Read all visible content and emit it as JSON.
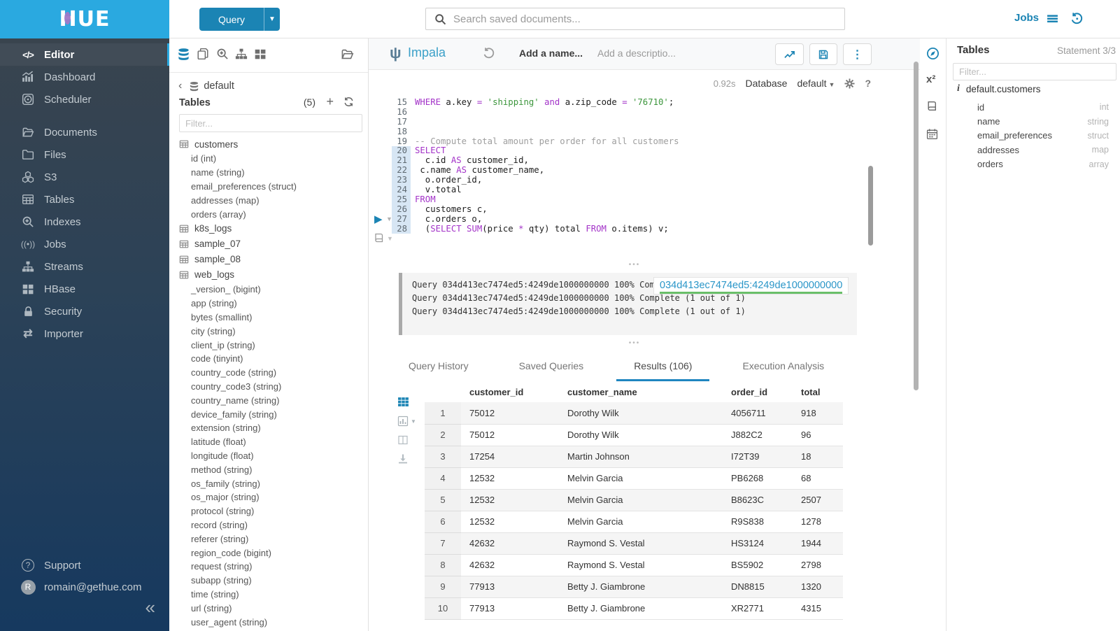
{
  "brand": {
    "logo_text_head": "H",
    "logo_text_tail": "UE"
  },
  "topbar": {
    "query_button": "Query",
    "search_placeholder": "Search saved documents...",
    "jobs_label": "Jobs"
  },
  "sidebar": {
    "items": [
      {
        "label": "Editor",
        "icon": "code-icon",
        "active": true,
        "group_start": false
      },
      {
        "label": "Dashboard",
        "icon": "dashboard-icon",
        "active": false,
        "group_start": false
      },
      {
        "label": "Scheduler",
        "icon": "scheduler-icon",
        "active": false,
        "group_start": false
      },
      {
        "label": "Documents",
        "icon": "documents-icon",
        "active": false,
        "group_start": true
      },
      {
        "label": "Files",
        "icon": "folder-icon",
        "active": false,
        "group_start": false
      },
      {
        "label": "S3",
        "icon": "cubes-icon",
        "active": false,
        "group_start": false
      },
      {
        "label": "Tables",
        "icon": "table-icon",
        "active": false,
        "group_start": false
      },
      {
        "label": "Indexes",
        "icon": "search-plus-icon",
        "active": false,
        "group_start": false
      },
      {
        "label": "Jobs",
        "icon": "broadcast-icon",
        "active": false,
        "group_start": false
      },
      {
        "label": "Streams",
        "icon": "sitemap-icon",
        "active": false,
        "group_start": false
      },
      {
        "label": "HBase",
        "icon": "blocks-icon",
        "active": false,
        "group_start": false
      },
      {
        "label": "Security",
        "icon": "lock-icon",
        "active": false,
        "group_start": false
      },
      {
        "label": "Importer",
        "icon": "exchange-icon",
        "active": false,
        "group_start": false
      }
    ],
    "support_label": "Support",
    "user_email": "romain@gethue.com"
  },
  "left_assist": {
    "database": "default",
    "tables_title": "Tables",
    "tables_count": "(5)",
    "filter_placeholder": "Filter...",
    "tables": [
      {
        "name": "customers",
        "columns": [
          "id (int)",
          "name (string)",
          "email_preferences (struct)",
          "addresses (map)",
          "orders (array)"
        ]
      },
      {
        "name": "k8s_logs",
        "columns": []
      },
      {
        "name": "sample_07",
        "columns": []
      },
      {
        "name": "sample_08",
        "columns": []
      },
      {
        "name": "web_logs",
        "columns": [
          "_version_ (bigint)",
          "app (string)",
          "bytes (smallint)",
          "city (string)",
          "client_ip (string)",
          "code (tinyint)",
          "country_code (string)",
          "country_code3 (string)",
          "country_name (string)",
          "device_family (string)",
          "extension (string)",
          "latitude (float)",
          "longitude (float)",
          "method (string)",
          "os_family (string)",
          "os_major (string)",
          "protocol (string)",
          "record (string)",
          "referer (string)",
          "region_code (bigint)",
          "request (string)",
          "subapp (string)",
          "time (string)",
          "url (string)",
          "user_agent (string)"
        ]
      }
    ]
  },
  "editor": {
    "engine": "Impala",
    "name_placeholder": "Add a name...",
    "description_placeholder": "Add a descriptio...",
    "duration": "0.92s",
    "database_label": "Database",
    "database_value": "default",
    "help_label": "?",
    "lines": [
      {
        "n": 15,
        "hl": false,
        "seg": [
          [
            "k",
            "WHERE"
          ],
          [
            "p",
            " a.key "
          ],
          [
            "k",
            "="
          ],
          [
            "p",
            " "
          ],
          [
            "s",
            "'shipping'"
          ],
          [
            "p",
            " "
          ],
          [
            "k",
            "and"
          ],
          [
            "p",
            " a.zip_code "
          ],
          [
            "k",
            "="
          ],
          [
            "p",
            " "
          ],
          [
            "s",
            "'76710'"
          ],
          [
            "p",
            ";"
          ]
        ]
      },
      {
        "n": 16,
        "hl": false,
        "seg": []
      },
      {
        "n": 17,
        "hl": false,
        "seg": []
      },
      {
        "n": 18,
        "hl": false,
        "seg": []
      },
      {
        "n": 19,
        "hl": false,
        "seg": [
          [
            "c",
            "-- Compute total amount per order for all customers"
          ]
        ]
      },
      {
        "n": 20,
        "hl": true,
        "seg": [
          [
            "k",
            "SELECT"
          ]
        ]
      },
      {
        "n": 21,
        "hl": true,
        "seg": [
          [
            "p",
            "  c.id "
          ],
          [
            "k",
            "AS"
          ],
          [
            "p",
            " customer_id,"
          ]
        ]
      },
      {
        "n": 22,
        "hl": true,
        "seg": [
          [
            "p",
            " c.name "
          ],
          [
            "k",
            "AS"
          ],
          [
            "p",
            " customer_name,"
          ]
        ]
      },
      {
        "n": 23,
        "hl": true,
        "seg": [
          [
            "p",
            "  o.order_id,"
          ]
        ]
      },
      {
        "n": 24,
        "hl": true,
        "seg": [
          [
            "p",
            "  v.total"
          ]
        ]
      },
      {
        "n": 25,
        "hl": true,
        "seg": [
          [
            "k",
            "FROM"
          ]
        ]
      },
      {
        "n": 26,
        "hl": true,
        "seg": [
          [
            "p",
            "  customers c,"
          ]
        ]
      },
      {
        "n": 27,
        "hl": true,
        "seg": [
          [
            "p",
            "  c.orders o,"
          ]
        ]
      },
      {
        "n": 28,
        "hl": true,
        "seg": [
          [
            "p",
            "  ("
          ],
          [
            "k",
            "SELECT"
          ],
          [
            "p",
            " "
          ],
          [
            "k",
            "SUM"
          ],
          [
            "p",
            "(price "
          ],
          [
            "k",
            "*"
          ],
          [
            "p",
            " qty) total "
          ],
          [
            "k",
            "FROM"
          ],
          [
            "p",
            " o.items) v;"
          ]
        ]
      }
    ]
  },
  "logs": {
    "lines": [
      "Query 034d413ec7474ed5:4249de1000000000 100% Complete (1 out of 1)",
      "Query 034d413ec7474ed5:4249de1000000000 100% Complete (1 out of 1)",
      "Query 034d413ec7474ed5:4249de1000000000 100% Complete (1 out of 1)"
    ],
    "tooltip": "034d413ec7474ed5:4249de1000000000"
  },
  "results": {
    "tabs": [
      {
        "label": "Query History",
        "active": false
      },
      {
        "label": "Saved Queries",
        "active": false
      },
      {
        "label": "Results (106)",
        "active": true
      },
      {
        "label": "Execution Analysis",
        "active": false
      }
    ],
    "columns": [
      "customer_id",
      "customer_name",
      "order_id",
      "total"
    ],
    "rows": [
      [
        "1",
        "75012",
        "Dorothy Wilk",
        "4056711",
        "918"
      ],
      [
        "2",
        "75012",
        "Dorothy Wilk",
        "J882C2",
        "96"
      ],
      [
        "3",
        "17254",
        "Martin Johnson",
        "I72T39",
        "18"
      ],
      [
        "4",
        "12532",
        "Melvin Garcia",
        "PB6268",
        "68"
      ],
      [
        "5",
        "12532",
        "Melvin Garcia",
        "B8623C",
        "2507"
      ],
      [
        "6",
        "12532",
        "Melvin Garcia",
        "R9S838",
        "1278"
      ],
      [
        "7",
        "42632",
        "Raymond S. Vestal",
        "HS3124",
        "1944"
      ],
      [
        "8",
        "42632",
        "Raymond S. Vestal",
        "BS5902",
        "2798"
      ],
      [
        "9",
        "77913",
        "Betty J. Giambrone",
        "DN8815",
        "1320"
      ],
      [
        "10",
        "77913",
        "Betty J. Giambrone",
        "XR2771",
        "4315"
      ]
    ]
  },
  "right_assist": {
    "title": "Tables",
    "statement": "Statement 3/3",
    "filter_placeholder": "Filter...",
    "table_name": "default.customers",
    "columns": [
      {
        "name": "id",
        "type": "int"
      },
      {
        "name": "name",
        "type": "string"
      },
      {
        "name": "email_preferences",
        "type": "struct"
      },
      {
        "name": "addresses",
        "type": "map"
      },
      {
        "name": "orders",
        "type": "array"
      }
    ]
  }
}
